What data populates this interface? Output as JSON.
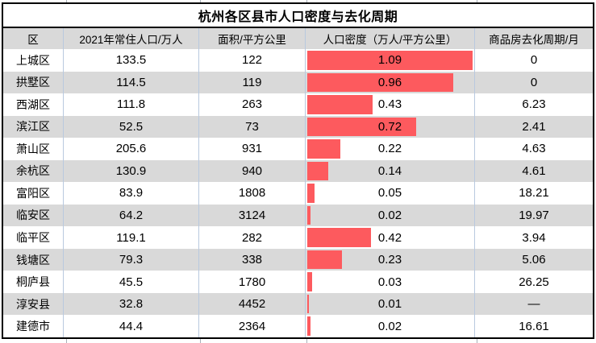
{
  "title": "杭州各区县市人口密度与去化周期",
  "colors": {
    "bar_red": "#fd5a5e",
    "row_alt_gray": "#d9d9d9",
    "gridline_blue": "#b9c9df",
    "edge_tick_gray": "#a9b0b8",
    "border_black": "#000000"
  },
  "chart_data": {
    "type": "table",
    "title": "杭州各区县市人口密度与去化周期",
    "columns": [
      "区",
      "2021年常住人口/万人",
      "面积/平方公里",
      "人口密度（万人/平方公里）",
      "商品房去化周期/月"
    ],
    "databar": {
      "column": "人口密度（万人/平方公里）",
      "max": "1.09",
      "color": "#fd5a5e",
      "style": "left-aligned horizontal data bar behind centered value text"
    },
    "rows": [
      {
        "district": "上城区",
        "population": "133.5",
        "area": "122",
        "density": "1.09",
        "cycle": "0"
      },
      {
        "district": "拱墅区",
        "population": "114.5",
        "area": "119",
        "density": "0.96",
        "cycle": "0"
      },
      {
        "district": "西湖区",
        "population": "111.8",
        "area": "263",
        "density": "0.43",
        "cycle": "6.23"
      },
      {
        "district": "滨江区",
        "population": "52.5",
        "area": "73",
        "density": "0.72",
        "cycle": "2.41"
      },
      {
        "district": "萧山区",
        "population": "205.6",
        "area": "931",
        "density": "0.22",
        "cycle": "4.63"
      },
      {
        "district": "余杭区",
        "population": "130.9",
        "area": "940",
        "density": "0.14",
        "cycle": "4.61"
      },
      {
        "district": "富阳区",
        "population": "83.9",
        "area": "1808",
        "density": "0.05",
        "cycle": "18.21"
      },
      {
        "district": "临安区",
        "population": "64.2",
        "area": "3124",
        "density": "0.02",
        "cycle": "19.97"
      },
      {
        "district": "临平区",
        "population": "119.1",
        "area": "282",
        "density": "0.42",
        "cycle": "3.94"
      },
      {
        "district": "钱塘区",
        "population": "79.3",
        "area": "338",
        "density": "0.23",
        "cycle": "5.06"
      },
      {
        "district": "桐庐县",
        "population": "45.5",
        "area": "1780",
        "density": "0.03",
        "cycle": "26.25"
      },
      {
        "district": "淳安县",
        "population": "32.8",
        "area": "4452",
        "density": "0.01",
        "cycle": "—"
      },
      {
        "district": "建德市",
        "population": "44.4",
        "area": "2364",
        "density": "0.02",
        "cycle": "16.61"
      }
    ]
  }
}
